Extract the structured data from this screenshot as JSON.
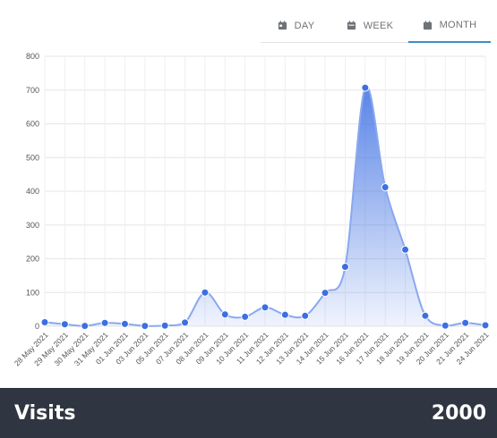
{
  "tabs": [
    {
      "label": "DAY",
      "icon": "calendar-icon",
      "active": false
    },
    {
      "label": "WEEK",
      "icon": "calendar-icon",
      "active": false
    },
    {
      "label": "MONTH",
      "icon": "calendar-icon",
      "active": true
    }
  ],
  "footer": {
    "label": "Visits",
    "value": "2000"
  },
  "colors": {
    "accent": "#3b8fc4",
    "series": "#3d6fe3",
    "footer_bg": "#303641"
  },
  "chart_data": {
    "type": "area",
    "categories": [
      "28 May 2021",
      "29 May 2021",
      "30 May 2021",
      "31 May 2021",
      "01 Jun 2021",
      "03 Jun 2021",
      "05 Jun 2021",
      "07 Jun 2021",
      "08 Jun 2021",
      "09 Jun 2021",
      "10 Jun 2021",
      "11 Jun 2021",
      "12 Jun 2021",
      "13 Jun 2021",
      "14 Jun 2021",
      "15 Jun 2021",
      "16 Jun 2021",
      "17 Jun 2021",
      "18 Jun 2021",
      "19 Jun 2021",
      "20 Jun 2021",
      "21 Jun 2021",
      "24 Jun 2021"
    ],
    "values": [
      12,
      6,
      1,
      10,
      7,
      1,
      2,
      11,
      100,
      35,
      28,
      56,
      34,
      31,
      99,
      176,
      707,
      412,
      227,
      31,
      2,
      10,
      3
    ],
    "ylim": [
      0,
      800
    ],
    "yticks": [
      "0",
      "100",
      "200",
      "300",
      "400",
      "500",
      "600",
      "700",
      "800"
    ],
    "grid": true
  }
}
